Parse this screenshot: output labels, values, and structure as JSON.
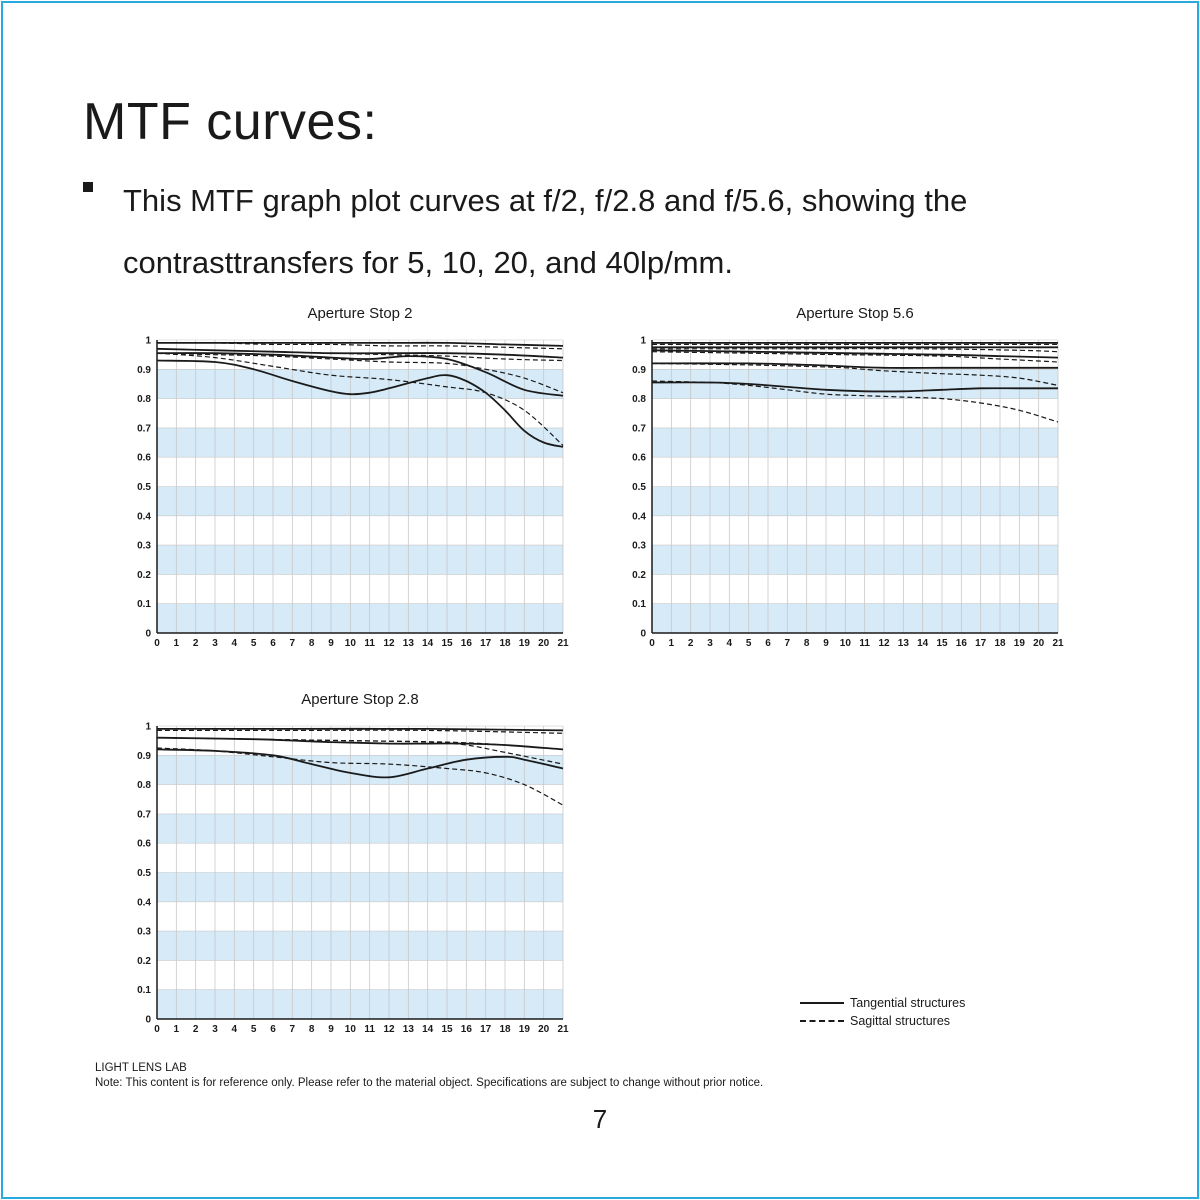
{
  "page": {
    "title": "MTF curves:",
    "bullet": "This MTF graph plot curves at f/2, f/2.8 and f/5.6, showing the contrasttransfers for 5, 10, 20, and 40lp/mm.",
    "legend": {
      "tangential": "Tangential structures",
      "sagittal": "Sagittal structures"
    },
    "footer_brand": "LIGHT LENS LAB",
    "footer_note": "Note: This content is for reference only. Please refer to the material object. Specifications are subject to change without prior notice.",
    "page_number": "7"
  },
  "colors": {
    "frame": "#29a9e0",
    "band": "#d6eaf8",
    "grid": "#c8c8c8",
    "curve": "#1a1a1a"
  },
  "chart_data": [
    {
      "type": "line",
      "title": "Aperture Stop  2",
      "xlim": [
        0,
        21
      ],
      "ylim": [
        0,
        1
      ],
      "x_ticks": [
        "0",
        "1",
        "2",
        "3",
        "4",
        "5",
        "6",
        "7",
        "8",
        "9",
        "10",
        "11",
        "12",
        "13",
        "14",
        "15",
        "16",
        "17",
        "18",
        "19",
        "20",
        "21"
      ],
      "y_ticks": [
        "0",
        "0.1",
        "0.2",
        "0.3",
        "0.4",
        "0.5",
        "0.6",
        "0.7",
        "0.8",
        "0.9",
        "1"
      ],
      "series": [
        {
          "style": "solid",
          "x": [
            0,
            3,
            6,
            9,
            12,
            15,
            18,
            21
          ],
          "y": [
            0.99,
            0.99,
            0.99,
            0.99,
            0.99,
            0.99,
            0.985,
            0.98
          ]
        },
        {
          "style": "dashed",
          "x": [
            0,
            3,
            6,
            9,
            12,
            15,
            18,
            21
          ],
          "y": [
            0.99,
            0.99,
            0.985,
            0.985,
            0.98,
            0.98,
            0.975,
            0.97
          ]
        },
        {
          "style": "solid",
          "x": [
            0,
            3,
            6,
            9,
            12,
            15,
            18,
            21
          ],
          "y": [
            0.97,
            0.965,
            0.96,
            0.955,
            0.955,
            0.955,
            0.95,
            0.94
          ]
        },
        {
          "style": "dashed",
          "x": [
            0,
            3,
            6,
            9,
            12,
            15,
            18,
            21
          ],
          "y": [
            0.97,
            0.965,
            0.96,
            0.955,
            0.95,
            0.945,
            0.935,
            0.93
          ]
        },
        {
          "style": "solid",
          "x": [
            0,
            3,
            6,
            9,
            11,
            13,
            15,
            17,
            19,
            21
          ],
          "y": [
            0.955,
            0.955,
            0.95,
            0.94,
            0.935,
            0.945,
            0.935,
            0.89,
            0.83,
            0.81
          ]
        },
        {
          "style": "dashed",
          "x": [
            0,
            3,
            6,
            9,
            12,
            15,
            17,
            19,
            21
          ],
          "y": [
            0.955,
            0.95,
            0.945,
            0.935,
            0.925,
            0.92,
            0.9,
            0.87,
            0.82
          ]
        },
        {
          "style": "solid",
          "x": [
            0,
            3,
            5,
            7,
            9,
            10,
            11,
            12,
            14,
            15,
            16,
            17,
            18,
            19,
            20,
            21
          ],
          "y": [
            0.93,
            0.925,
            0.9,
            0.86,
            0.825,
            0.815,
            0.82,
            0.835,
            0.87,
            0.88,
            0.86,
            0.82,
            0.76,
            0.69,
            0.65,
            0.635
          ]
        },
        {
          "style": "dashed",
          "x": [
            0,
            3,
            6,
            9,
            12,
            15,
            17,
            19,
            21
          ],
          "y": [
            0.955,
            0.94,
            0.91,
            0.88,
            0.865,
            0.84,
            0.82,
            0.76,
            0.64
          ]
        }
      ]
    },
    {
      "type": "line",
      "title": "Aperture Stop  5.6",
      "xlim": [
        0,
        21
      ],
      "ylim": [
        0,
        1
      ],
      "x_ticks": [
        "0",
        "1",
        "2",
        "3",
        "4",
        "5",
        "6",
        "7",
        "8",
        "9",
        "10",
        "11",
        "12",
        "13",
        "14",
        "15",
        "16",
        "17",
        "18",
        "19",
        "20",
        "21"
      ],
      "y_ticks": [
        "0",
        "0.1",
        "0.2",
        "0.3",
        "0.4",
        "0.5",
        "0.6",
        "0.7",
        "0.8",
        "0.9",
        "1"
      ],
      "series": [
        {
          "style": "solid",
          "x": [
            0,
            7,
            14,
            21
          ],
          "y": [
            0.99,
            0.99,
            0.99,
            0.99
          ]
        },
        {
          "style": "dashed",
          "x": [
            0,
            7,
            14,
            21
          ],
          "y": [
            0.985,
            0.985,
            0.985,
            0.985
          ]
        },
        {
          "style": "solid",
          "x": [
            0,
            7,
            14,
            21
          ],
          "y": [
            0.975,
            0.975,
            0.975,
            0.975
          ]
        },
        {
          "style": "dashed",
          "x": [
            0,
            7,
            14,
            19,
            21
          ],
          "y": [
            0.97,
            0.97,
            0.97,
            0.965,
            0.96
          ]
        },
        {
          "style": "solid",
          "x": [
            0,
            5,
            10,
            15,
            18,
            21
          ],
          "y": [
            0.965,
            0.96,
            0.955,
            0.95,
            0.945,
            0.94
          ]
        },
        {
          "style": "dashed",
          "x": [
            0,
            5,
            10,
            15,
            18,
            21
          ],
          "y": [
            0.96,
            0.955,
            0.95,
            0.945,
            0.935,
            0.925
          ]
        },
        {
          "style": "solid",
          "x": [
            0,
            5,
            8,
            10,
            12,
            15,
            17,
            19,
            21
          ],
          "y": [
            0.92,
            0.92,
            0.915,
            0.91,
            0.905,
            0.905,
            0.905,
            0.905,
            0.905
          ]
        },
        {
          "style": "dashed",
          "x": [
            0,
            5,
            8,
            10,
            12,
            15,
            17,
            19,
            21
          ],
          "y": [
            0.92,
            0.915,
            0.91,
            0.905,
            0.895,
            0.885,
            0.88,
            0.87,
            0.845
          ]
        },
        {
          "style": "solid",
          "x": [
            0,
            3,
            5,
            7,
            9,
            11,
            13,
            15,
            17,
            19,
            21
          ],
          "y": [
            0.855,
            0.855,
            0.85,
            0.84,
            0.83,
            0.825,
            0.825,
            0.83,
            0.835,
            0.835,
            0.835
          ]
        },
        {
          "style": "dashed",
          "x": [
            0,
            3,
            5,
            7,
            9,
            11,
            13,
            15,
            17,
            19,
            21
          ],
          "y": [
            0.86,
            0.855,
            0.845,
            0.83,
            0.815,
            0.81,
            0.805,
            0.8,
            0.785,
            0.76,
            0.72
          ]
        }
      ]
    },
    {
      "type": "line",
      "title": "Aperture Stop  2.8",
      "xlim": [
        0,
        21
      ],
      "ylim": [
        0,
        1
      ],
      "x_ticks": [
        "0",
        "1",
        "2",
        "3",
        "4",
        "5",
        "6",
        "7",
        "8",
        "9",
        "10",
        "11",
        "12",
        "13",
        "14",
        "15",
        "16",
        "17",
        "18",
        "19",
        "20",
        "21"
      ],
      "y_ticks": [
        "0",
        "0.1",
        "0.2",
        "0.3",
        "0.4",
        "0.5",
        "0.6",
        "0.7",
        "0.8",
        "0.9",
        "1"
      ],
      "series": [
        {
          "style": "solid",
          "x": [
            0,
            7,
            14,
            21
          ],
          "y": [
            0.99,
            0.99,
            0.99,
            0.985
          ]
        },
        {
          "style": "dashed",
          "x": [
            0,
            7,
            14,
            21
          ],
          "y": [
            0.985,
            0.985,
            0.985,
            0.975
          ]
        },
        {
          "style": "solid",
          "x": [
            0,
            5,
            9,
            12,
            14,
            16,
            18,
            21
          ],
          "y": [
            0.96,
            0.955,
            0.945,
            0.94,
            0.94,
            0.94,
            0.935,
            0.92
          ]
        },
        {
          "style": "dashed",
          "x": [
            0,
            5,
            10,
            15,
            18,
            21
          ],
          "y": [
            0.96,
            0.955,
            0.95,
            0.945,
            0.935,
            0.92
          ]
        },
        {
          "style": "solid",
          "x": [
            0,
            3,
            6,
            8,
            10,
            12,
            14,
            16,
            18,
            19,
            21
          ],
          "y": [
            0.92,
            0.915,
            0.9,
            0.87,
            0.84,
            0.825,
            0.855,
            0.885,
            0.895,
            0.885,
            0.855
          ]
        },
        {
          "style": "dashed",
          "x": [
            0,
            3,
            6,
            9,
            12,
            15,
            17,
            19,
            21
          ],
          "y": [
            0.925,
            0.915,
            0.895,
            0.875,
            0.87,
            0.855,
            0.84,
            0.8,
            0.73
          ]
        },
        {
          "style": "dashed",
          "x": [
            0,
            5,
            10,
            14,
            16,
            18,
            21
          ],
          "y": [
            0.96,
            0.955,
            0.95,
            0.945,
            0.935,
            0.91,
            0.87
          ]
        }
      ]
    }
  ]
}
